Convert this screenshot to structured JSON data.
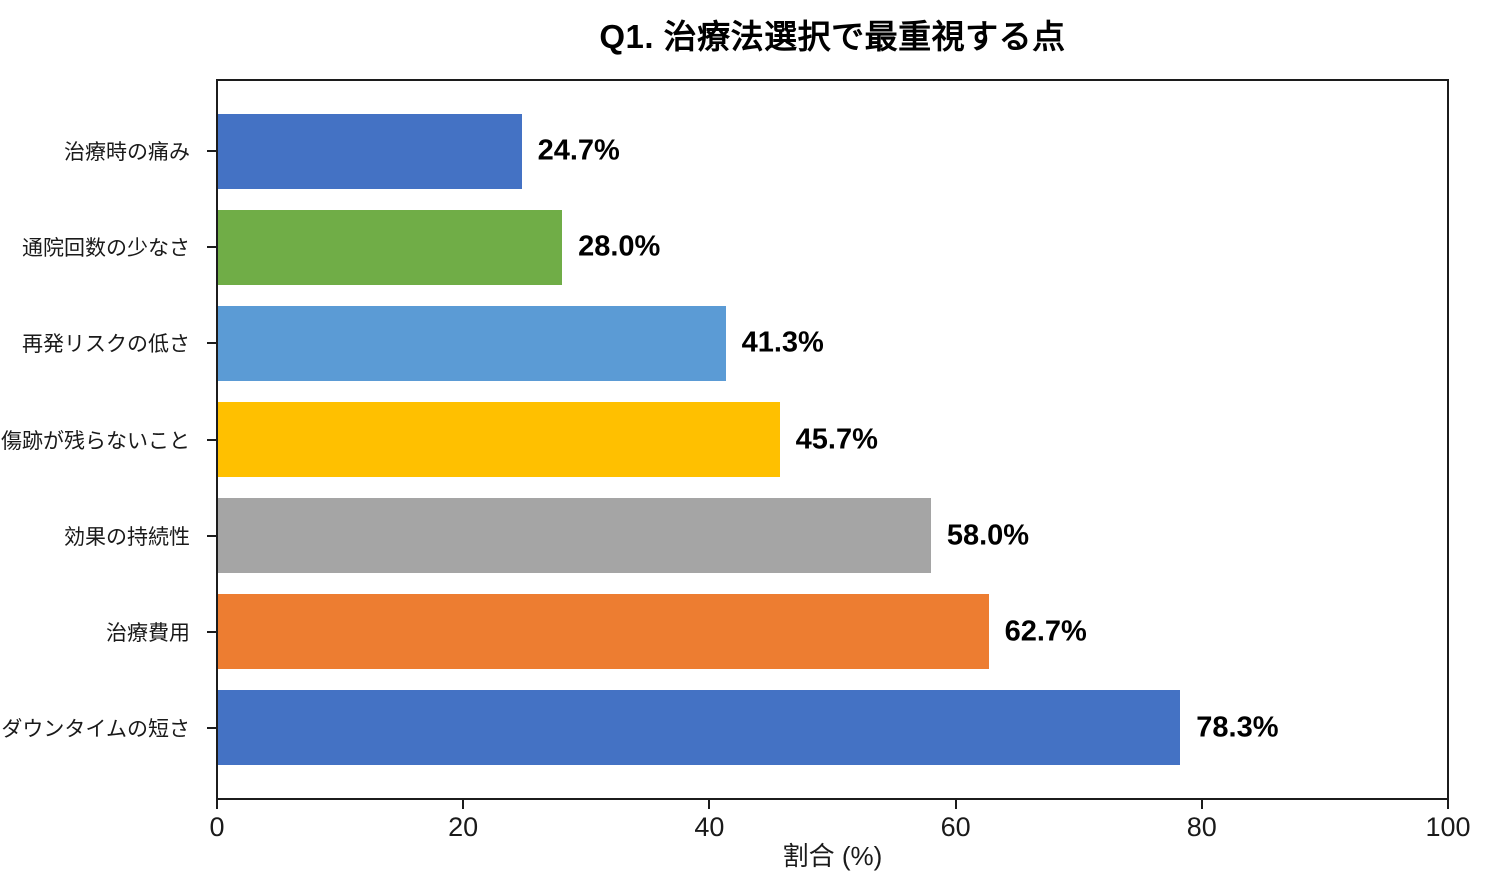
{
  "chart_data": {
    "type": "bar",
    "orientation": "horizontal",
    "title": "Q1. 治療法選択で最重視する点",
    "xlabel": "割合 (%)",
    "ylabel": "",
    "xlim": [
      0,
      100
    ],
    "x_tick_values": [
      0,
      20,
      40,
      60,
      80,
      100
    ],
    "x_tick_labels": [
      "0",
      "20",
      "40",
      "60",
      "80",
      "100"
    ],
    "grid": false,
    "legend": null,
    "categories": [
      "治療時の痛み",
      "通院回数の少なさ",
      "再発リスクの低さ",
      "傷跡が残らないこと",
      "効果の持続性",
      "治療費用",
      "ダウンタイムの短さ"
    ],
    "values": [
      24.7,
      28.0,
      41.3,
      45.7,
      58.0,
      62.7,
      78.3
    ],
    "value_labels": [
      "24.7%",
      "28.0%",
      "41.3%",
      "45.7%",
      "58.0%",
      "62.7%",
      "78.3%"
    ],
    "bar_colors": [
      "#4472C4",
      "#70AD47",
      "#5B9BD5",
      "#FFC000",
      "#A5A5A5",
      "#ED7D31",
      "#4472C4"
    ],
    "axis_color": "#1c1c1c"
  }
}
